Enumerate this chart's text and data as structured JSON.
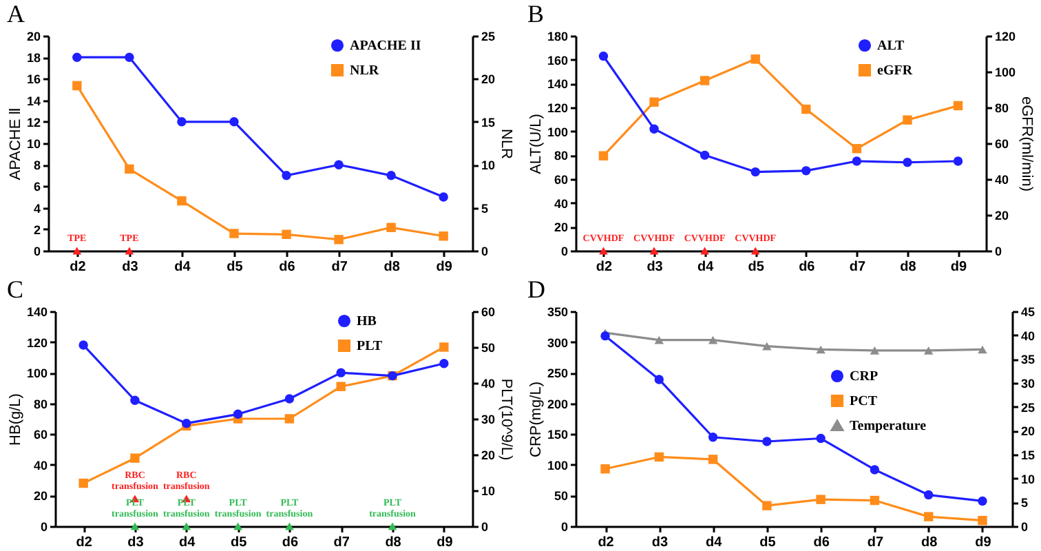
{
  "chart_data": [
    {
      "type": "line",
      "title": "A",
      "ylabel": "APACHE Ⅱ",
      "y2label": "NLR",
      "categories": [
        "d2",
        "d3",
        "d4",
        "d5",
        "d6",
        "d7",
        "d8",
        "d9"
      ],
      "ylim": [
        0,
        20
      ],
      "yticks": [
        0,
        2,
        4,
        6,
        8,
        10,
        12,
        14,
        16,
        18,
        20
      ],
      "y2lim": [
        0,
        25
      ],
      "y2ticks": [
        0,
        5,
        10,
        15,
        20,
        25
      ],
      "legend": "top right",
      "series": [
        {
          "name": "APACHE II",
          "color": "#1f1fff",
          "marker": "circle",
          "values": [
            18,
            18,
            12,
            12,
            7,
            8,
            7,
            5
          ]
        },
        {
          "name": "NLR",
          "color": "#ff8c1a",
          "marker": "square",
          "axis": "y2",
          "values": [
            19.2,
            9.5,
            5.8,
            2.0,
            1.9,
            1.3,
            2.7,
            1.7
          ]
        },
        {
          "type": "scatter",
          "color": "#ff2020",
          "marker": "triangle",
          "x": [
            "d2",
            "d3"
          ],
          "values": [
            0,
            0
          ]
        }
      ],
      "annotations": [
        "TPE",
        "TPE"
      ]
    },
    {
      "type": "line",
      "title": "B",
      "ylabel": "ALT(U/L)",
      "y2label": "eGFR(ml/min)",
      "categories": [
        "d2",
        "d3",
        "d4",
        "d5",
        "d6",
        "d7",
        "d8",
        "d9"
      ],
      "ylim": [
        0,
        180
      ],
      "yticks": [
        0,
        20,
        40,
        60,
        80,
        100,
        120,
        140,
        160,
        180
      ],
      "y2lim": [
        0,
        120
      ],
      "y2ticks": [
        0,
        20,
        40,
        60,
        80,
        100,
        120
      ],
      "legend": "top right",
      "series": [
        {
          "name": "ALT",
          "color": "#1f1fff",
          "marker": "circle",
          "values": [
            163,
            102,
            80,
            66,
            67,
            75,
            74,
            75
          ]
        },
        {
          "name": "eGFR",
          "color": "#ff8c1a",
          "marker": "square",
          "axis": "y2",
          "values": [
            53,
            83,
            95,
            107,
            79,
            57,
            73,
            81
          ]
        },
        {
          "type": "scatter",
          "color": "#ff2020",
          "marker": "triangle",
          "x": [
            "d2",
            "d3",
            "d4",
            "d5"
          ],
          "values": [
            0,
            0,
            0,
            0
          ]
        }
      ],
      "annotations": [
        "CVVHDF",
        "CVVHDF",
        "CVVHDF",
        "CVVHDF"
      ]
    },
    {
      "type": "line",
      "title": "C",
      "ylabel": "HB(g/L)",
      "y2label": "PLT(10^9/L)",
      "categories": [
        "d2",
        "d3",
        "d4",
        "d5",
        "d6",
        "d7",
        "d8",
        "d9"
      ],
      "ylim": [
        0,
        140
      ],
      "yticks": [
        0,
        20,
        40,
        60,
        80,
        100,
        120,
        140
      ],
      "y2lim": [
        0,
        60
      ],
      "y2ticks": [
        0,
        10,
        20,
        30,
        40,
        50,
        60
      ],
      "legend": "top right",
      "series": [
        {
          "name": "HB",
          "color": "#1f1fff",
          "marker": "circle",
          "values": [
            118,
            82,
            67,
            73,
            83,
            100,
            98,
            106
          ]
        },
        {
          "name": "PLT",
          "color": "#ff8c1a",
          "marker": "square",
          "axis": "y2",
          "values": [
            12,
            19,
            28,
            30,
            30,
            39,
            42,
            50
          ]
        },
        {
          "type": "scatter",
          "color": "#ff2020",
          "marker": "triangle",
          "x": [
            "d3",
            "d4"
          ],
          "values": [
            18,
            18
          ]
        },
        {
          "type": "scatter",
          "color": "#33bb55",
          "marker": "triangle",
          "x": [
            "d3",
            "d4",
            "d5",
            "d6",
            "d8"
          ],
          "values": [
            0,
            0,
            0,
            0,
            0
          ]
        }
      ],
      "annotations": [
        "RBC\ntransfusion",
        "RBC\ntransfusion",
        "PLT\ntransfusion",
        "PLT\ntransfusion",
        "PLT\ntransfusion",
        "PLT\ntransfusion",
        "PLT\ntransfusion"
      ]
    },
    {
      "type": "line",
      "title": "D",
      "ylabel": "CRP(mg/L)",
      "categories": [
        "d2",
        "d3",
        "d4",
        "d5",
        "d6",
        "d7",
        "d8",
        "d9"
      ],
      "ylim": [
        0,
        350
      ],
      "yticks": [
        0,
        50,
        100,
        150,
        200,
        250,
        300,
        350
      ],
      "y2lim": [
        0,
        45
      ],
      "y2ticks": [
        0,
        5,
        10,
        15,
        20,
        25,
        30,
        35,
        40,
        45
      ],
      "legend": "right",
      "series": [
        {
          "name": "CRP",
          "color": "#1f1fff",
          "marker": "circle",
          "values": [
            310,
            239,
            145,
            138,
            143,
            92,
            51,
            41
          ]
        },
        {
          "name": "PCT",
          "color": "#ff8c1a",
          "marker": "square",
          "axis": "y2",
          "values": [
            12,
            14.5,
            14,
            4.3,
            5.6,
            5.4,
            2,
            1.2
          ]
        },
        {
          "name": "Temperature",
          "color": "#8c8c8c",
          "marker": "triangle",
          "axis": "y2",
          "values": [
            40.5,
            39,
            39,
            37.7,
            37,
            36.8,
            36.8,
            37
          ]
        }
      ]
    }
  ]
}
